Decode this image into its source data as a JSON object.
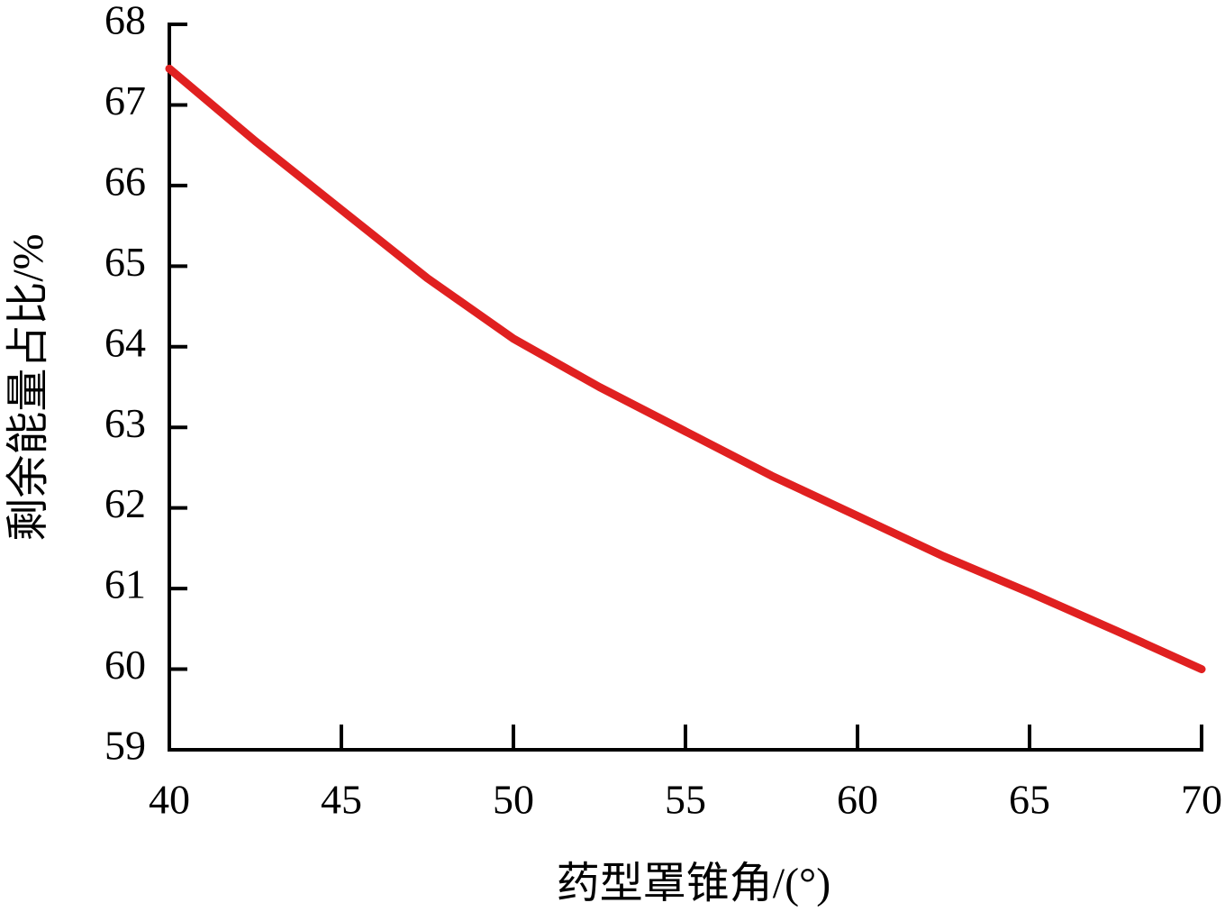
{
  "chart_data": {
    "type": "line",
    "x_label": "药型罩锥角/(°)",
    "y_label": "剩余能量占比/%",
    "x": [
      40,
      42.5,
      45,
      47.5,
      50,
      52.5,
      55,
      57.5,
      60,
      62.5,
      65,
      67.5,
      70
    ],
    "series": [
      {
        "color": "#e02020",
        "values": [
          67.45,
          66.55,
          65.7,
          64.85,
          64.1,
          63.5,
          62.95,
          62.4,
          61.9,
          61.4,
          60.95,
          60.48,
          60.0
        ]
      }
    ],
    "xlim": [
      40,
      70
    ],
    "xticks": [
      40,
      45,
      50,
      55,
      60,
      65,
      70
    ],
    "ylim": [
      59,
      68
    ],
    "yticks": [
      59,
      60,
      61,
      62,
      63,
      64,
      65,
      66,
      67,
      68
    ]
  }
}
